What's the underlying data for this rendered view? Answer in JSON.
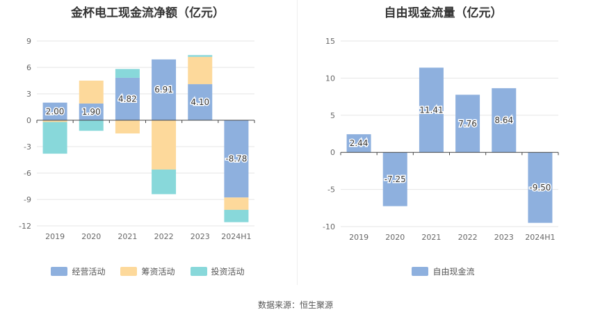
{
  "chart_data": [
    {
      "type": "bar",
      "stacked": true,
      "title": "金杯电工现金流净额（亿元）",
      "categories": [
        "2019",
        "2020",
        "2021",
        "2022",
        "2023",
        "2024H1"
      ],
      "ylim": [
        -12,
        9
      ],
      "yticks": [
        "9",
        "6",
        "3",
        "0",
        "-3",
        "-6",
        "-9",
        "-12"
      ],
      "ytick_values": [
        9,
        6,
        3,
        0,
        -3,
        -6,
        -9,
        -12
      ],
      "grid": true,
      "legend_position": "bottom",
      "series": [
        {
          "name": "经营活动",
          "color": "#8eb0de",
          "values": [
            2.0,
            1.9,
            4.82,
            6.91,
            4.1,
            -8.78
          ]
        },
        {
          "name": "筹资活动",
          "color": "#fdd99b",
          "values": [
            -0.2,
            2.6,
            -1.5,
            -5.6,
            3.1,
            -1.4
          ]
        },
        {
          "name": "投资活动",
          "color": "#88d8da",
          "values": [
            -3.6,
            -1.2,
            1.0,
            -2.8,
            0.2,
            -1.4
          ]
        }
      ],
      "data_labels": [
        "2.00",
        "1.90",
        "4.82",
        "6.91",
        "4.10",
        "-8.78"
      ]
    },
    {
      "type": "bar",
      "title": "自由现金流量（亿元）",
      "categories": [
        "2019",
        "2020",
        "2021",
        "2022",
        "2023",
        "2024H1"
      ],
      "ylim": [
        -10,
        15
      ],
      "yticks": [
        "15",
        "10",
        "5",
        "0",
        "-5",
        "-10"
      ],
      "ytick_values": [
        15,
        10,
        5,
        0,
        -5,
        -10
      ],
      "grid": true,
      "legend_position": "bottom",
      "series": [
        {
          "name": "自由现金流",
          "color": "#8eb0de",
          "values": [
            2.44,
            -7.25,
            11.41,
            7.76,
            8.64,
            -9.5
          ]
        }
      ],
      "data_labels": [
        "2.44",
        "-7.25",
        "11.41",
        "7.76",
        "8.64",
        "-9.50"
      ]
    }
  ],
  "footer": "数据来源：恒生聚源"
}
